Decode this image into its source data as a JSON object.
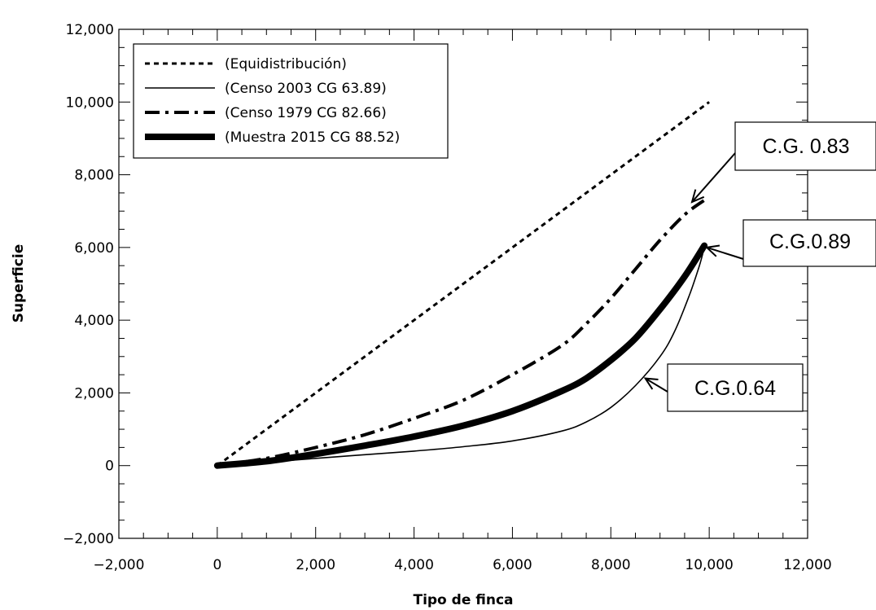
{
  "chart_data": {
    "type": "line",
    "title": "",
    "xlabel": "Tipo de finca",
    "ylabel": "Superficie",
    "xlim": [
      -2000,
      12000
    ],
    "ylim": [
      -2000,
      12000
    ],
    "xticks": [
      -2000,
      0,
      2000,
      4000,
      6000,
      8000,
      10000,
      12000
    ],
    "yticks": [
      -2000,
      0,
      2000,
      4000,
      6000,
      8000,
      10000,
      12000
    ],
    "xtick_labels": [
      "−2,000",
      "0",
      "2,000",
      "4,000",
      "6,000",
      "8,000",
      "10,000",
      "12,000"
    ],
    "ytick_labels": [
      "−2,000",
      "0",
      "2,000",
      "4,000",
      "6,000",
      "8,000",
      "10,000",
      "12,000"
    ],
    "grid": false,
    "legend_position": "top-left",
    "series": [
      {
        "name": "(Equidistribución)",
        "style": "dotted",
        "color": "#000000",
        "x": [
          0,
          10000
        ],
        "y": [
          0,
          10000
        ]
      },
      {
        "name": "(Censo 2003 CG 63.89)",
        "style": "thin",
        "color": "#000000",
        "x": [
          0,
          1000,
          2000,
          3000,
          4000,
          5000,
          6000,
          7000,
          7500,
          8000,
          8500,
          9000,
          9300,
          9600,
          9800,
          9900
        ],
        "y": [
          0,
          90,
          200,
          300,
          400,
          520,
          680,
          950,
          1200,
          1600,
          2200,
          3000,
          3700,
          4700,
          5500,
          6000
        ]
      },
      {
        "name": "(Censo 1979 CG 82.66)",
        "style": "dash-dot",
        "color": "#000000",
        "x": [
          0,
          1000,
          2000,
          3000,
          4000,
          5000,
          6000,
          7000,
          7500,
          8000,
          8500,
          9000,
          9500,
          9900
        ],
        "y": [
          0,
          200,
          500,
          850,
          1300,
          1800,
          2500,
          3300,
          3900,
          4600,
          5400,
          6200,
          6900,
          7300
        ]
      },
      {
        "name": "(Muestra 2015 CG 88.52)",
        "style": "thick",
        "color": "#000000",
        "x": [
          0,
          1000,
          2000,
          3000,
          4000,
          5000,
          6000,
          7000,
          7500,
          8000,
          8500,
          9000,
          9500,
          9900
        ],
        "y": [
          0,
          120,
          320,
          550,
          800,
          1100,
          1500,
          2050,
          2400,
          2900,
          3500,
          4300,
          5200,
          6050
        ]
      }
    ],
    "annotations": [
      {
        "text": "C.G. 0.83",
        "target": [
          9650,
          7250
        ]
      },
      {
        "text": "C.G.0.89",
        "target": [
          9950,
          6000
        ]
      },
      {
        "text": "C.G.0.64",
        "target": [
          8700,
          2400
        ]
      }
    ]
  }
}
